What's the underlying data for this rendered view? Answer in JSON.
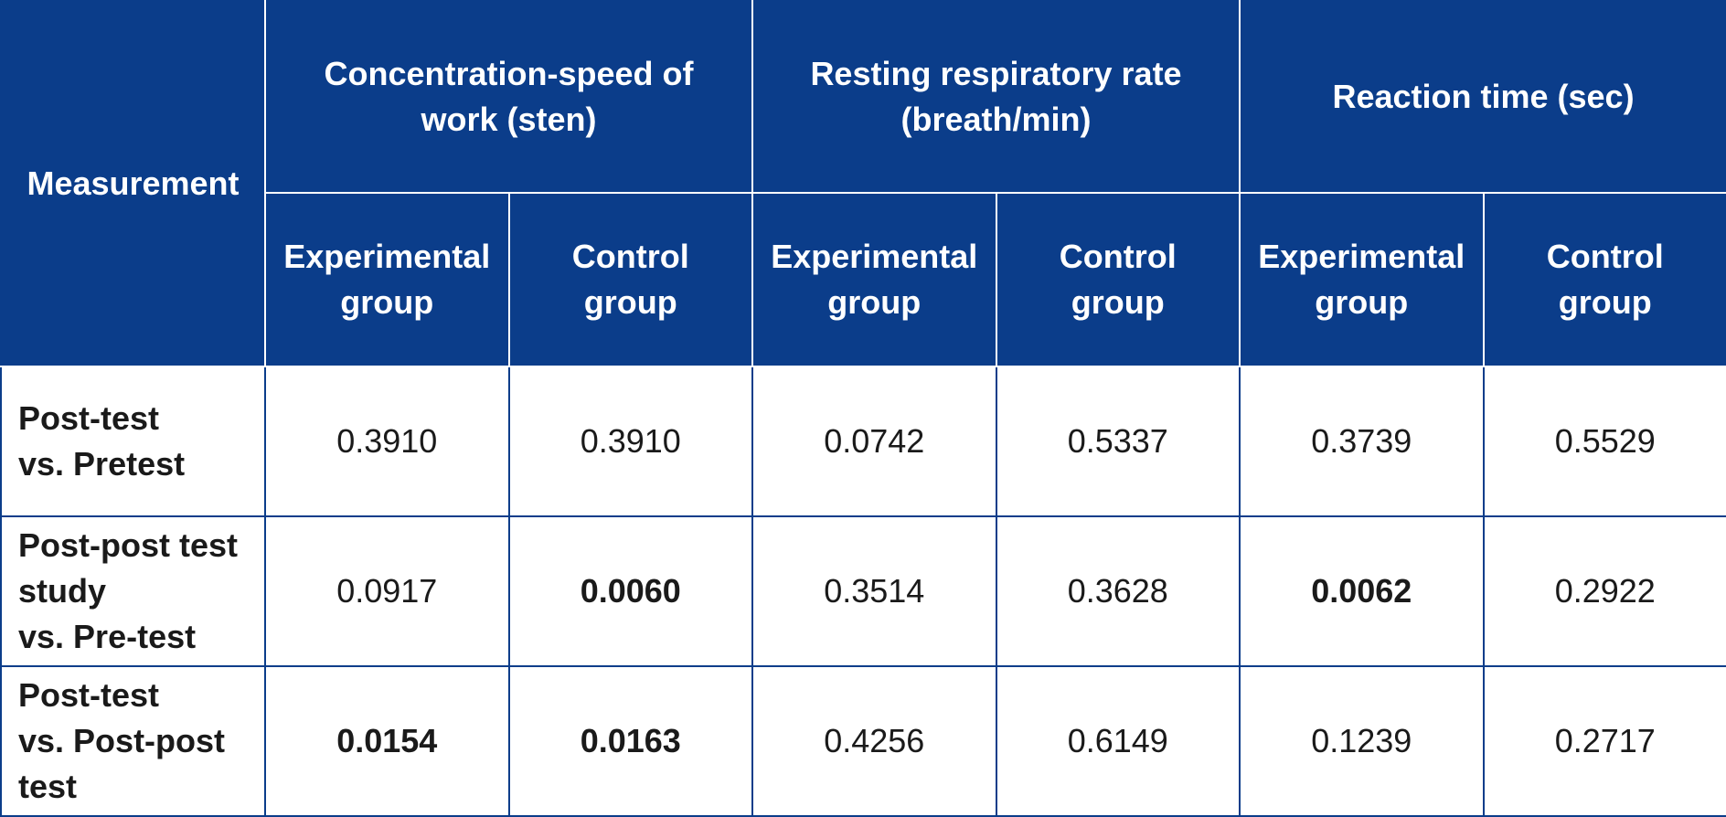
{
  "table": {
    "measurement_header": "Measurement",
    "groups": [
      {
        "title_lines": [
          "Concentration-speed of",
          "work (sten)"
        ]
      },
      {
        "title_lines": [
          "Resting respiratory rate",
          "(breath/min)"
        ]
      },
      {
        "title_lines": [
          "Reaction time (sec)"
        ]
      }
    ],
    "subheaders": [
      {
        "lines": [
          "Experimental",
          "group"
        ]
      },
      {
        "lines": [
          "Control",
          "group"
        ]
      },
      {
        "lines": [
          "Experimental",
          "group"
        ]
      },
      {
        "lines": [
          "Control",
          "group"
        ]
      },
      {
        "lines": [
          "Experimental",
          "group"
        ]
      },
      {
        "lines": [
          "Control",
          "group"
        ]
      }
    ],
    "rows": [
      {
        "label_lines": [
          "Post-test",
          "vs. Pretest"
        ],
        "cells": [
          {
            "value": "0.3910",
            "bold": false
          },
          {
            "value": "0.3910",
            "bold": false
          },
          {
            "value": "0.0742",
            "bold": false
          },
          {
            "value": "0.5337",
            "bold": false
          },
          {
            "value": "0.3739",
            "bold": false
          },
          {
            "value": "0.5529",
            "bold": false
          }
        ]
      },
      {
        "label_lines": [
          "Post-post test",
          "study",
          "vs. Pre-test"
        ],
        "cells": [
          {
            "value": "0.0917",
            "bold": false
          },
          {
            "value": "0.0060",
            "bold": true
          },
          {
            "value": "0.3514",
            "bold": false
          },
          {
            "value": "0.3628",
            "bold": false
          },
          {
            "value": "0.0062",
            "bold": true
          },
          {
            "value": "0.2922",
            "bold": false
          }
        ]
      },
      {
        "label_lines": [
          "Post-test",
          "vs. Post-post",
          "test"
        ],
        "cells": [
          {
            "value": "0.0154",
            "bold": true
          },
          {
            "value": "0.0163",
            "bold": true
          },
          {
            "value": "0.4256",
            "bold": false
          },
          {
            "value": "0.6149",
            "bold": false
          },
          {
            "value": "0.1239",
            "bold": false
          },
          {
            "value": "0.2717",
            "bold": false
          }
        ]
      }
    ]
  },
  "colors": {
    "header_background": "#0b3d8a",
    "header_text": "#ffffff",
    "grid_line": "#0b3d8a",
    "body_text": "#1a1a1a"
  }
}
